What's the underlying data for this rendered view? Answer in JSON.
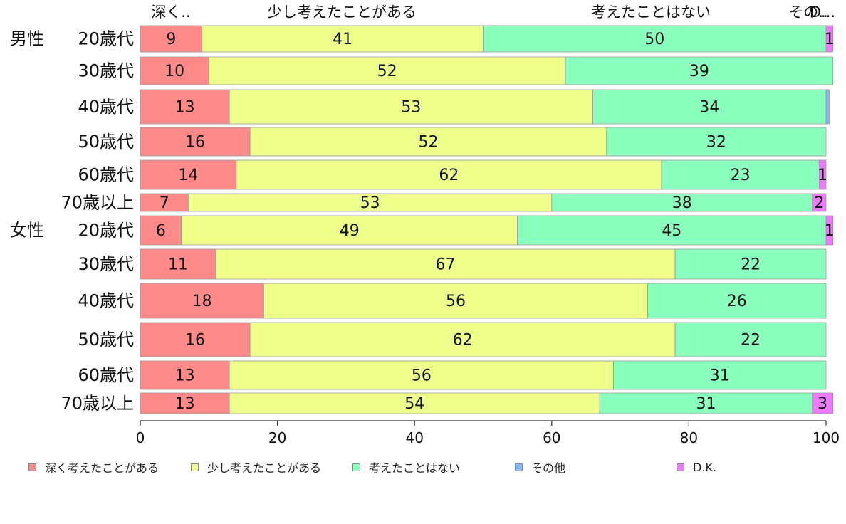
{
  "chart_data": {
    "type": "bar",
    "orientation": "horizontal",
    "stacked": true,
    "xlim": [
      0,
      100
    ],
    "xticks": [
      0,
      20,
      40,
      60,
      80,
      100
    ],
    "grid": false,
    "legend_position": "bottom",
    "groups": [
      {
        "label": "男性",
        "row_indices": [
          0,
          1,
          2,
          3,
          4,
          5
        ]
      },
      {
        "label": "女性",
        "row_indices": [
          6,
          7,
          8,
          9,
          10,
          11
        ]
      }
    ],
    "categories": [
      "20歳代",
      "30歳代",
      "40歳代",
      "50歳代",
      "60歳代",
      "70歳以上",
      "20歳代",
      "30歳代",
      "40歳代",
      "50歳代",
      "60歳代",
      "70歳以上"
    ],
    "series": [
      {
        "name": "深く考えたことがある",
        "color": "#FF8A8A",
        "values": [
          9,
          10,
          13,
          16,
          14,
          7,
          6,
          11,
          18,
          16,
          13,
          13
        ]
      },
      {
        "name": "少し考えたことがある",
        "color": "#EEFF8C",
        "values": [
          41,
          52,
          53,
          52,
          62,
          53,
          49,
          67,
          56,
          62,
          56,
          54
        ]
      },
      {
        "name": "考えたことはない",
        "color": "#8AFFBE",
        "values": [
          50,
          39,
          34,
          32,
          23,
          38,
          45,
          22,
          26,
          22,
          31,
          31
        ]
      },
      {
        "name": "その他",
        "color": "#8AB8FF",
        "values": [
          0,
          0,
          0.5,
          0,
          0,
          0,
          0,
          0,
          0,
          0,
          0,
          0
        ]
      },
      {
        "name": "D.K.",
        "color": "#EE7BFF",
        "values": [
          1,
          0,
          0,
          0,
          1,
          2,
          1,
          0,
          0,
          0,
          0,
          3
        ]
      }
    ],
    "data_labels": [
      [
        "9",
        "41",
        "50",
        "",
        "1"
      ],
      [
        "10",
        "52",
        "39",
        "",
        ""
      ],
      [
        "13",
        "53",
        "34",
        "",
        ""
      ],
      [
        "16",
        "52",
        "32",
        "",
        ""
      ],
      [
        "14",
        "62",
        "23",
        "",
        "1"
      ],
      [
        "7",
        "53",
        "38",
        "",
        "2"
      ],
      [
        "6",
        "49",
        "45",
        "",
        "1"
      ],
      [
        "11",
        "67",
        "22",
        "",
        ""
      ],
      [
        "18",
        "56",
        "26",
        "",
        ""
      ],
      [
        "16",
        "62",
        "22",
        "",
        ""
      ],
      [
        "13",
        "56",
        "31",
        "",
        ""
      ],
      [
        "13",
        "54",
        "31",
        "",
        "3"
      ]
    ],
    "top_labels": [
      "深く..",
      "少し考えたことがある",
      "考えたことはない",
      "その..",
      "D..."
    ]
  }
}
